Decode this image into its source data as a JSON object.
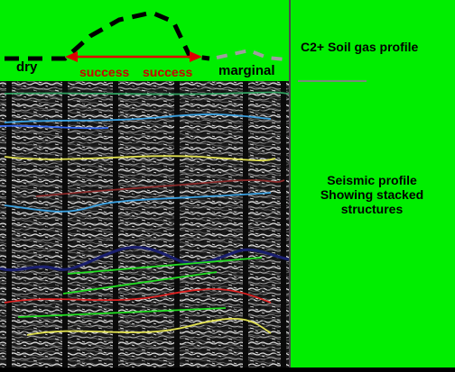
{
  "colors": {
    "panel_green": "#00ee00",
    "profile_line": "#000000",
    "marginal_line": "#aaaaaa",
    "arrow": "#dd0000",
    "seismic_bg": "#1a1a1a"
  },
  "soil_gas": {
    "label_dry": "dry",
    "label_success_1": "success",
    "label_success_2": "success",
    "label_marginal": "marginal",
    "caption": "C2+ Soil gas profile"
  },
  "seismic": {
    "caption_lines": [
      "Seismic profile",
      "Showing stacked",
      "structures"
    ],
    "horizon_colors": [
      "#30a060",
      "#3aa0e0",
      "#3366ee",
      "#e0e050",
      "#8b2a2a",
      "#3aa0e0",
      "#1a1f6e",
      "#22dd22",
      "#22dd22",
      "#dd2222",
      "#22dd22",
      "#e0e050"
    ]
  }
}
